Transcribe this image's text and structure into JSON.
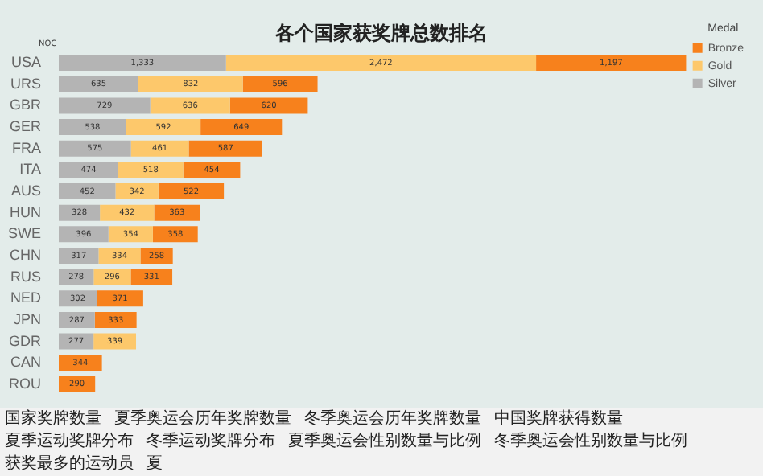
{
  "chart_data": {
    "type": "bar",
    "orientation": "horizontal",
    "stacked": true,
    "title": "各个国家获奖牌总数排名",
    "ylabel": "NOC",
    "legend_title": "Medal",
    "legend": "top right",
    "tick_labels": "y",
    "data_labels": true,
    "categories": [
      "USA",
      "URS",
      "GBR",
      "GER",
      "FRA",
      "ITA",
      "AUS",
      "HUN",
      "SWE",
      "CHN",
      "RUS",
      "NED",
      "JPN",
      "GDR",
      "CAN",
      "ROU"
    ],
    "series": [
      {
        "name": "Silver",
        "color": "#b4b4b4",
        "values": [
          1333,
          635,
          729,
          538,
          575,
          474,
          452,
          328,
          396,
          317,
          278,
          302,
          287,
          277,
          null,
          null
        ],
        "value_labels": [
          "1,333",
          "635",
          "729",
          "538",
          "575",
          "474",
          "452",
          "328",
          "396",
          "317",
          "278",
          "302",
          "287",
          "277",
          null,
          null
        ]
      },
      {
        "name": "Gold",
        "color": "#fdc86b",
        "values": [
          2472,
          832,
          636,
          592,
          461,
          518,
          342,
          432,
          354,
          334,
          296,
          null,
          null,
          339,
          null,
          null
        ],
        "value_labels": [
          "2,472",
          "832",
          "636",
          "592",
          "461",
          "518",
          "342",
          "432",
          "354",
          "334",
          "296",
          null,
          null,
          "339",
          null,
          null
        ]
      },
      {
        "name": "Bronze",
        "color": "#f7811c",
        "values": [
          1197,
          596,
          620,
          649,
          587,
          454,
          522,
          363,
          358,
          258,
          331,
          371,
          333,
          null,
          344,
          290
        ],
        "value_labels": [
          "1,197",
          "596",
          "620",
          "649",
          "587",
          "454",
          "522",
          "363",
          "358",
          "258",
          "331",
          "371",
          "333",
          null,
          "344",
          "290"
        ]
      }
    ],
    "annotations": [
      "国家奖牌数量",
      "夏季奥运会历年奖牌数量",
      "冬季奥运会历年奖牌数量",
      "中国奖牌获得数量",
      "夏季运动奖牌分布",
      "冬季运动奖牌分布",
      "夏季奥运会性别数量与比例",
      "冬季奥运会性别数量与比例",
      "获奖最多的运动员",
      "夏"
    ]
  }
}
